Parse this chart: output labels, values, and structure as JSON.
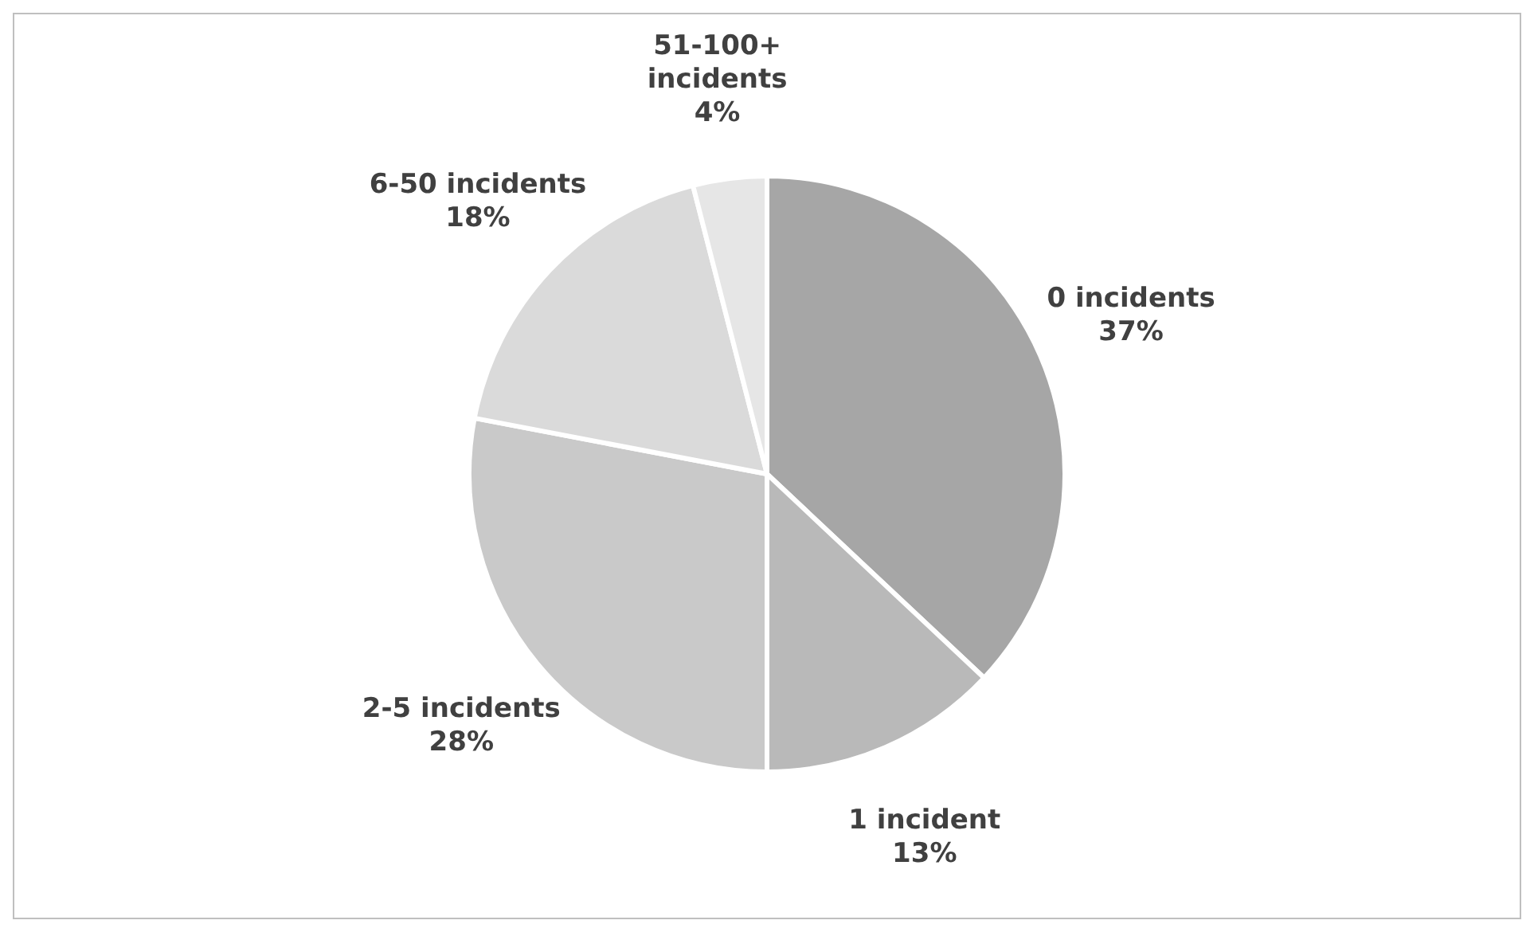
{
  "chart_data": {
    "type": "pie",
    "categories": [
      "0 incidents",
      "1 incident",
      "2-5 incidents",
      "6-50 incidents",
      "51-100+ incidents"
    ],
    "values": [
      37,
      13,
      28,
      18,
      4
    ],
    "value_labels": [
      "37%",
      "13%",
      "28%",
      "18%",
      "4%"
    ],
    "colors": [
      "#a6a6a6",
      "#b9b9b9",
      "#c9c9c9",
      "#dadada",
      "#e6e6e6"
    ],
    "legend": false
  }
}
